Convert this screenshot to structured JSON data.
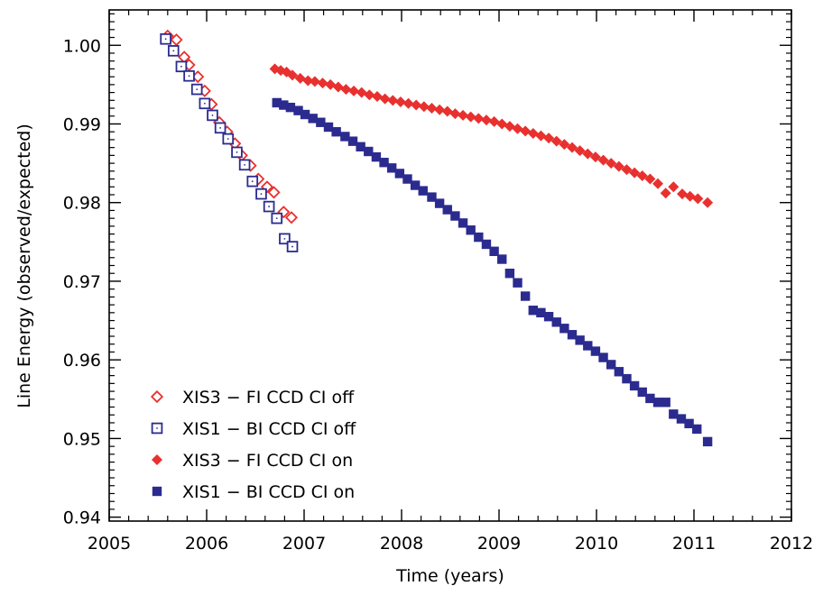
{
  "chart_data": {
    "type": "scatter",
    "xlabel": "Time (years)",
    "ylabel": "Line Energy (observed/expected)",
    "xlim": [
      2005,
      2012
    ],
    "ylim": [
      0.9395,
      1.0045
    ],
    "xticks": [
      2005,
      2006,
      2007,
      2008,
      2009,
      2010,
      2011,
      2012
    ],
    "xtick_labels": [
      "2005",
      "2006",
      "2007",
      "2008",
      "2009",
      "2010",
      "2011",
      "2012"
    ],
    "yticks": [
      0.94,
      0.95,
      0.96,
      0.97,
      0.98,
      0.99,
      1.0
    ],
    "ytick_labels": [
      "0.94",
      "0.95",
      "0.96",
      "0.97",
      "0.98",
      "0.99",
      "1.00"
    ],
    "grid": false,
    "legend_position": "bottom-left",
    "series": [
      {
        "name": "XIS3 − FI CCD CI off",
        "marker": "open-diamond",
        "color": "#e8312f",
        "x": [
          2005.6,
          2005.69,
          2005.77,
          2005.82,
          2005.91,
          2005.98,
          2006.05,
          2006.13,
          2006.21,
          2006.29,
          2006.36,
          2006.45,
          2006.53,
          2006.62,
          2006.69,
          2006.79,
          2006.87
        ],
        "y": [
          1.0012,
          1.0007,
          0.9985,
          0.9975,
          0.996,
          0.9942,
          0.9925,
          0.9902,
          0.989,
          0.9875,
          0.986,
          0.9847,
          0.983,
          0.982,
          0.9813,
          0.9788,
          0.9781
        ]
      },
      {
        "name": "XIS1 − BI CCD CI off",
        "marker": "open-square",
        "color": "#2b2b8f",
        "x": [
          2005.58,
          2005.66,
          2005.74,
          2005.82,
          2005.9,
          2005.98,
          2006.06,
          2006.14,
          2006.22,
          2006.31,
          2006.39,
          2006.47,
          2006.56,
          2006.64,
          2006.72,
          2006.8,
          2006.88
        ],
        "y": [
          1.0008,
          0.9993,
          0.9973,
          0.9961,
          0.9944,
          0.9926,
          0.9911,
          0.9895,
          0.9881,
          0.9864,
          0.9848,
          0.9827,
          0.9811,
          0.9795,
          0.978,
          0.9754,
          0.9744
        ]
      },
      {
        "name": "XIS3 − FI CCD CI on",
        "marker": "filled-diamond",
        "color": "#e8312f",
        "x": [
          2006.7,
          2006.76,
          2006.82,
          2006.88,
          2006.96,
          2007.04,
          2007.11,
          2007.19,
          2007.27,
          2007.35,
          2007.43,
          2007.51,
          2007.59,
          2007.67,
          2007.75,
          2007.83,
          2007.91,
          2007.99,
          2008.07,
          2008.15,
          2008.23,
          2008.31,
          2008.39,
          2008.47,
          2008.55,
          2008.63,
          2008.71,
          2008.79,
          2008.87,
          2008.95,
          2009.03,
          2009.11,
          2009.19,
          2009.27,
          2009.35,
          2009.43,
          2009.51,
          2009.59,
          2009.67,
          2009.75,
          2009.83,
          2009.91,
          2009.99,
          2010.07,
          2010.15,
          2010.23,
          2010.31,
          2010.39,
          2010.47,
          2010.55,
          2010.63,
          2010.71,
          2010.79,
          2010.88,
          2010.96,
          2011.04,
          2011.14
        ],
        "y": [
          0.997,
          0.9968,
          0.9966,
          0.9962,
          0.9958,
          0.9955,
          0.9954,
          0.9952,
          0.995,
          0.9947,
          0.9944,
          0.9942,
          0.994,
          0.9937,
          0.9935,
          0.9932,
          0.993,
          0.9928,
          0.9926,
          0.9924,
          0.9922,
          0.992,
          0.9918,
          0.9916,
          0.9913,
          0.9911,
          0.9909,
          0.9907,
          0.9905,
          0.9903,
          0.99,
          0.9897,
          0.9894,
          0.9891,
          0.9888,
          0.9885,
          0.9882,
          0.9878,
          0.9874,
          0.987,
          0.9866,
          0.9862,
          0.9858,
          0.9854,
          0.985,
          0.9846,
          0.9842,
          0.9838,
          0.9834,
          0.983,
          0.9824,
          0.9812,
          0.982,
          0.9811,
          0.9808,
          0.9805,
          0.98
        ]
      },
      {
        "name": "XIS1 − BI CCD CI on",
        "marker": "filled-square",
        "color": "#2b2b8f",
        "x": [
          2006.72,
          2006.79,
          2006.86,
          2006.94,
          2007.01,
          2007.09,
          2007.17,
          2007.25,
          2007.33,
          2007.42,
          2007.5,
          2007.58,
          2007.66,
          2007.74,
          2007.82,
          2007.9,
          2007.98,
          2008.06,
          2008.14,
          2008.22,
          2008.31,
          2008.39,
          2008.47,
          2008.55,
          2008.63,
          2008.71,
          2008.79,
          2008.87,
          2008.95,
          2009.03,
          2009.11,
          2009.19,
          2009.27,
          2009.35,
          2009.43,
          2009.51,
          2009.59,
          2009.67,
          2009.75,
          2009.83,
          2009.91,
          2009.99,
          2010.07,
          2010.15,
          2010.23,
          2010.31,
          2010.39,
          2010.47,
          2010.55,
          2010.63,
          2010.71,
          2010.79,
          2010.87,
          2010.95,
          2011.03,
          2011.14
        ],
        "y": [
          0.9927,
          0.9924,
          0.9921,
          0.9917,
          0.9912,
          0.9907,
          0.9902,
          0.9896,
          0.989,
          0.9884,
          0.9878,
          0.9871,
          0.9865,
          0.9858,
          0.9851,
          0.9844,
          0.9837,
          0.983,
          0.9822,
          0.9815,
          0.9807,
          0.9799,
          0.9791,
          0.9783,
          0.9774,
          0.9765,
          0.9756,
          0.9747,
          0.9738,
          0.9728,
          0.971,
          0.9698,
          0.9681,
          0.9663,
          0.966,
          0.9655,
          0.9648,
          0.964,
          0.9632,
          0.9625,
          0.9618,
          0.9611,
          0.9603,
          0.9594,
          0.9585,
          0.9576,
          0.9567,
          0.9559,
          0.9551,
          0.9546,
          0.9546,
          0.9531,
          0.9525,
          0.9519,
          0.9512,
          0.9496
        ]
      }
    ]
  }
}
